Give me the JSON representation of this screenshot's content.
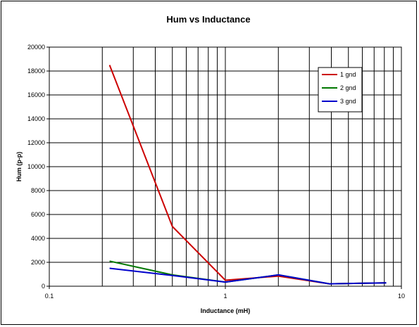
{
  "chart_data": {
    "type": "line",
    "title": "Hum vs Inductance",
    "xlabel": "Inductance (mH)",
    "ylabel": "Hum (p-p)",
    "x_scale": "log",
    "xlim": [
      0.1,
      10
    ],
    "ylim": [
      0,
      20000
    ],
    "x_ticks": [
      0.1,
      1,
      10
    ],
    "x_tick_labels": [
      "0.1",
      "1",
      "10"
    ],
    "y_ticks": [
      0,
      2000,
      4000,
      6000,
      8000,
      10000,
      12000,
      14000,
      16000,
      18000,
      20000
    ],
    "y_tick_labels": [
      "0",
      "2000",
      "4000",
      "6000",
      "8000",
      "10000",
      "12000",
      "14000",
      "16000",
      "18000",
      "20000"
    ],
    "grid": true,
    "legend_position": "top-right",
    "series": [
      {
        "name": "1 gnd",
        "color": "#cc0000",
        "x": [
          0.22,
          0.5,
          1.0,
          2.0,
          3.9,
          8.2
        ],
        "y": [
          18500,
          5000,
          500,
          850,
          200,
          280
        ]
      },
      {
        "name": "2 gnd",
        "color": "#007700",
        "x": [
          0.22,
          0.5,
          1.0,
          2.0,
          3.9,
          8.2
        ],
        "y": [
          2100,
          950,
          350,
          950,
          200,
          280
        ]
      },
      {
        "name": "3 gnd",
        "color": "#0000cc",
        "x": [
          0.22,
          0.5,
          1.0,
          2.0,
          3.9,
          8.2
        ],
        "y": [
          1500,
          900,
          350,
          950,
          200,
          280
        ]
      }
    ]
  }
}
